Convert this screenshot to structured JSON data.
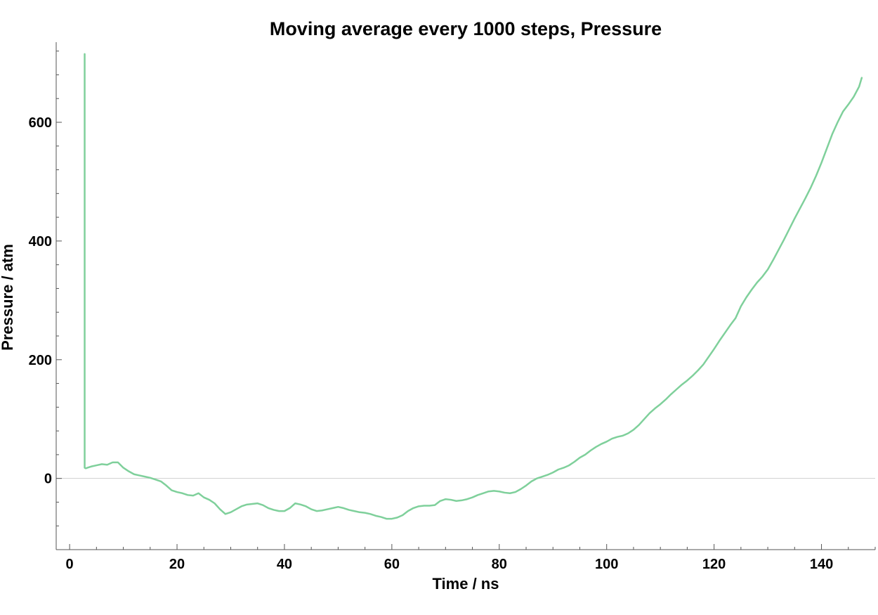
{
  "chart_data": {
    "type": "line",
    "title": "Moving average every 1000 steps, Pressure",
    "xlabel": "Time / ns",
    "ylabel": "Pressure / atm",
    "xlim": [
      -2.5,
      150
    ],
    "ylim": [
      -120,
      735
    ],
    "x_major_ticks": [
      0,
      20,
      40,
      60,
      80,
      100,
      120,
      140
    ],
    "x_minor_step": 5,
    "y_major_ticks": [
      0,
      200,
      400,
      600
    ],
    "y_minor_step": 40,
    "zero_line": true,
    "grid": false,
    "colors": {
      "series": "#7fd09b",
      "axis": "#555555",
      "zero_line": "#cfcfcf"
    },
    "series": [
      {
        "x": [
          2.8,
          2.8,
          3,
          4,
          5,
          6,
          7,
          8,
          9,
          10,
          11,
          12,
          13,
          14,
          15,
          16,
          17,
          18,
          19,
          20,
          21,
          22,
          23,
          24,
          25,
          26,
          27,
          28,
          29,
          30,
          31,
          32,
          33,
          34,
          35,
          36,
          37,
          38,
          39,
          40,
          41,
          42,
          43,
          44,
          45,
          46,
          47,
          48,
          49,
          50,
          51,
          52,
          53,
          54,
          55,
          56,
          57,
          58,
          59,
          60,
          61,
          62,
          63,
          64,
          65,
          66,
          67,
          68,
          69,
          70,
          71,
          72,
          73,
          74,
          75,
          76,
          77,
          78,
          79,
          80,
          81,
          82,
          83,
          84,
          85,
          86,
          87,
          88,
          89,
          90,
          91,
          92,
          93,
          94,
          95,
          96,
          97,
          98,
          99,
          100,
          101,
          102,
          103,
          104,
          105,
          106,
          107,
          108,
          109,
          110,
          111,
          112,
          113,
          114,
          115,
          116,
          117,
          118,
          119,
          120,
          121,
          122,
          123,
          124,
          125,
          126,
          127,
          128,
          129,
          130,
          131,
          132,
          133,
          134,
          135,
          136,
          137,
          138,
          139,
          140,
          141,
          142,
          143,
          144,
          145,
          146,
          147,
          147.5
        ],
        "y": [
          715,
          18,
          17,
          20,
          22,
          24,
          23,
          27,
          27,
          18,
          12,
          7,
          5,
          3,
          1,
          -2,
          -5,
          -12,
          -20,
          -23,
          -25,
          -28,
          -29,
          -25,
          -32,
          -36,
          -42,
          -52,
          -60,
          -57,
          -52,
          -47,
          -44,
          -43,
          -42,
          -45,
          -50,
          -53,
          -55,
          -55,
          -50,
          -42,
          -44,
          -47,
          -52,
          -55,
          -54,
          -52,
          -50,
          -48,
          -50,
          -53,
          -55,
          -57,
          -58,
          -60,
          -63,
          -65,
          -68,
          -68,
          -66,
          -62,
          -55,
          -50,
          -47,
          -46,
          -46,
          -45,
          -38,
          -35,
          -36,
          -38,
          -37,
          -35,
          -32,
          -28,
          -25,
          -22,
          -21,
          -22,
          -24,
          -25,
          -23,
          -18,
          -12,
          -5,
          0,
          3,
          6,
          10,
          15,
          18,
          22,
          28,
          35,
          40,
          47,
          53,
          58,
          62,
          67,
          70,
          72,
          76,
          82,
          90,
          100,
          110,
          118,
          125,
          133,
          142,
          150,
          158,
          165,
          173,
          182,
          192,
          205,
          218,
          232,
          245,
          258,
          270,
          290,
          305,
          318,
          330,
          340,
          352,
          368,
          385,
          402,
          420,
          438,
          455,
          472,
          490,
          510,
          532,
          556,
          580,
          600,
          618,
          630,
          643,
          660,
          675
        ]
      }
    ]
  }
}
